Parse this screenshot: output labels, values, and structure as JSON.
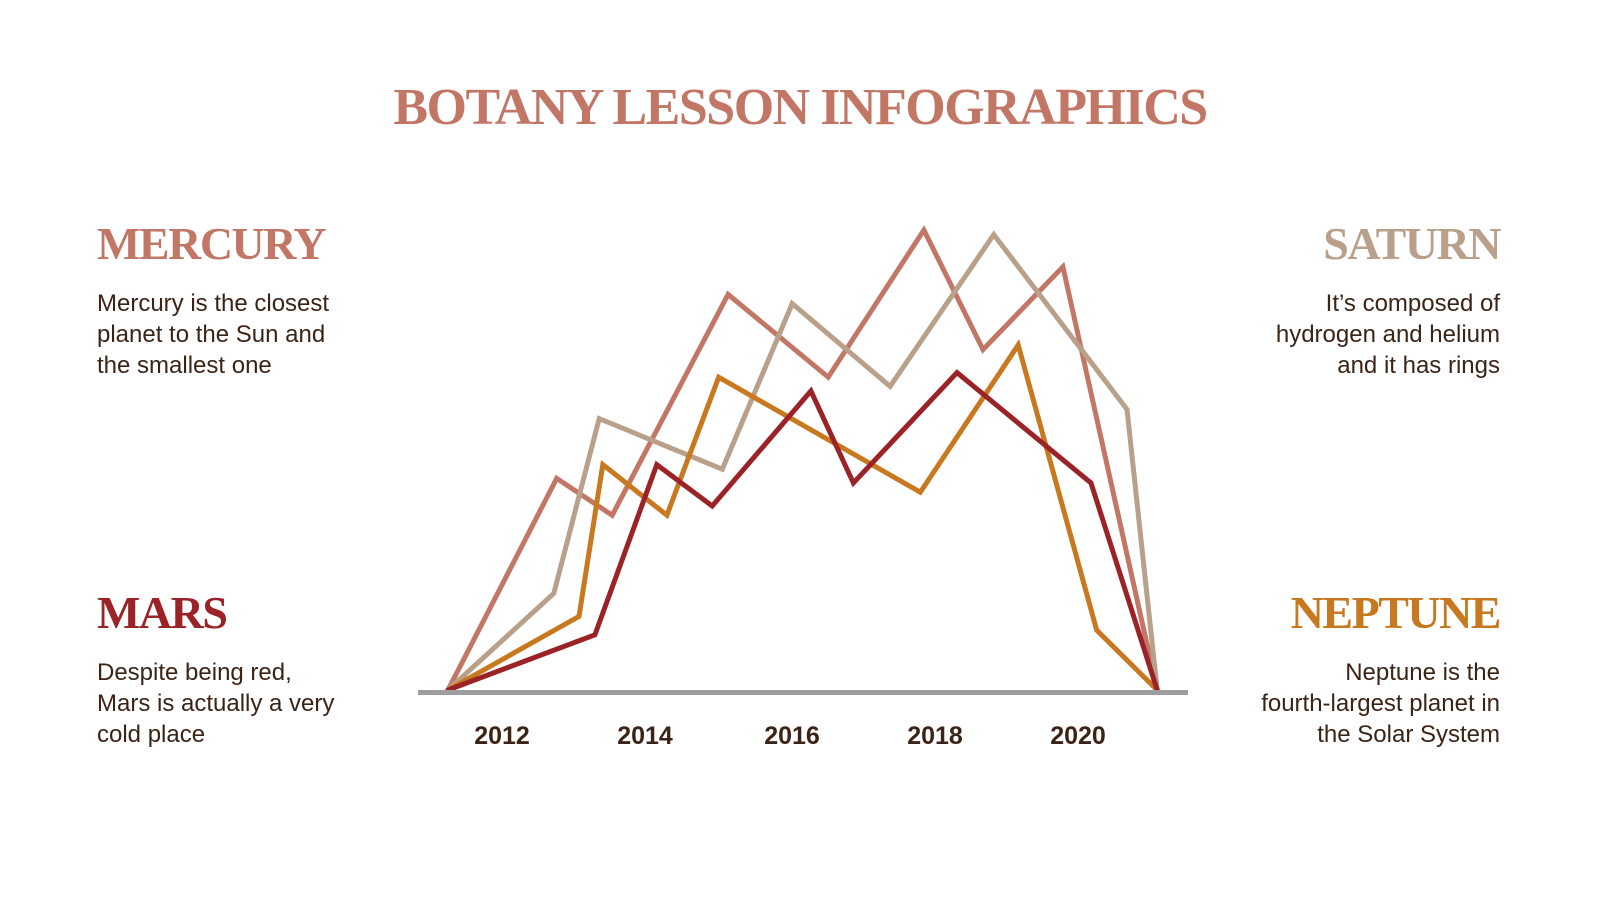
{
  "title": "BOTANY LESSON INFOGRAPHICS",
  "blocks": {
    "mercury": {
      "heading": "MERCURY",
      "lines": [
        "Mercury is the closest",
        "planet to the Sun and",
        "the smallest one"
      ],
      "color": "#C27766"
    },
    "saturn": {
      "heading": "SATURN",
      "lines": [
        "It’s composed of",
        "hydrogen and helium",
        "and it has rings"
      ],
      "color": "#B8A08A"
    },
    "mars": {
      "heading": "MARS",
      "lines": [
        "Despite being red,",
        "Mars is actually a very",
        "cold place"
      ],
      "color": "#9B2226"
    },
    "neptune": {
      "heading": "NEPTUNE",
      "lines": [
        "Neptune is the",
        "fourth-largest planet in",
        "the Solar System"
      ],
      "color": "#C8781E"
    }
  },
  "colors": {
    "title": "#C27766",
    "body_text": "#3B2416",
    "axis": "#9E9E9E",
    "background": "#FFFFFF"
  },
  "chart_data": {
    "type": "line",
    "title": "",
    "xlabel": "",
    "ylabel": "",
    "tick_labels": [
      "2012",
      "2014",
      "2016",
      "2018",
      "2020"
    ],
    "tick_positions_x": [
      2012,
      2014,
      2016,
      2018,
      2020
    ],
    "xlim": [
      2011.25,
      2021.1
    ],
    "ylim": [
      0,
      100
    ],
    "grid": false,
    "legend": "none (series identified by colored headings around chart)",
    "series": [
      {
        "name": "Mercury",
        "color": "#C27766",
        "x": [
          2011.25,
          2012.76,
          2013.53,
          2015.14,
          2016.53,
          2017.86,
          2018.68,
          2019.79,
          2021.1
        ],
        "values": [
          0,
          46,
          38,
          86,
          68,
          100,
          74,
          92,
          0
        ]
      },
      {
        "name": "Saturn",
        "color": "#B8A08A",
        "x": [
          2011.25,
          2012.72,
          2013.35,
          2015.06,
          2016.03,
          2017.39,
          2018.83,
          2020.68,
          2021.1
        ],
        "values": [
          0,
          21,
          59,
          48,
          84,
          66,
          99,
          61,
          0
        ]
      },
      {
        "name": "Neptune",
        "color": "#C8781E",
        "x": [
          2011.25,
          2013.07,
          2013.4,
          2014.29,
          2015.01,
          2017.81,
          2019.17,
          2020.26,
          2021.1
        ],
        "values": [
          0,
          16,
          49,
          38,
          68,
          43,
          75,
          13,
          0
        ]
      },
      {
        "name": "Mars",
        "color": "#9B2226",
        "x": [
          2011.25,
          2013.29,
          2014.15,
          2014.92,
          2016.29,
          2016.88,
          2018.32,
          2020.18,
          2021.1
        ],
        "values": [
          0,
          12,
          49,
          40,
          65,
          45,
          69,
          45,
          0
        ]
      }
    ]
  }
}
